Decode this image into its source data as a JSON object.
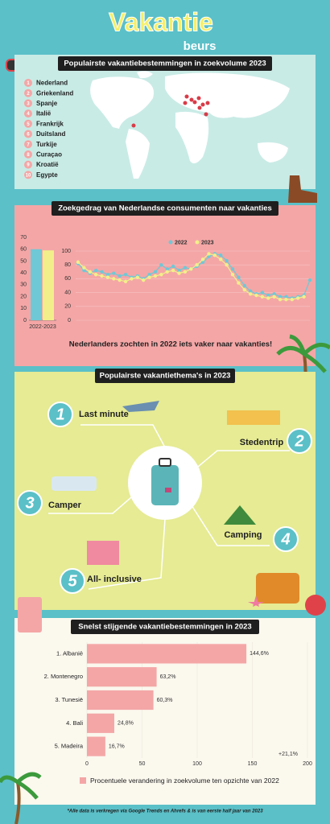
{
  "header": {
    "title": "Vakantie",
    "subtitle": "beurs"
  },
  "section_titles": [
    "Populairste vakantiebestemmingen in zoekvolume 2023",
    "Zoekgedrag van Nederlandse consumenten naar vakanties",
    "Populairste vakantiethema's in 2023",
    "Snelst stijgende vakantiebestemmingen in 2023"
  ],
  "destinations": [
    {
      "rank": "1",
      "name": "Nederland"
    },
    {
      "rank": "2",
      "name": "Griekenland"
    },
    {
      "rank": "3",
      "name": "Spanje"
    },
    {
      "rank": "4",
      "name": "Italië"
    },
    {
      "rank": "5",
      "name": "Frankrijk"
    },
    {
      "rank": "6",
      "name": "Duitsland"
    },
    {
      "rank": "7",
      "name": "Turkije"
    },
    {
      "rank": "8",
      "name": "Curaçao"
    },
    {
      "rank": "9",
      "name": "Kroatië"
    },
    {
      "rank": "10",
      "name": "Egypte"
    }
  ],
  "themes": [
    {
      "number": "1",
      "label": "Last minute"
    },
    {
      "number": "2",
      "label": "Stedentrip"
    },
    {
      "number": "3",
      "label": "Camper"
    },
    {
      "number": "4",
      "label": "Camping"
    },
    {
      "number": "5",
      "label": "All- inclusive"
    }
  ],
  "footer": "*Alle data is verkregen via Google Trends en Ahrefs & is van eerste half jaar van 2023",
  "chart_data": [
    {
      "type": "bar",
      "categories": [
        "2022-2023"
      ],
      "series": [
        {
          "color": "#6fc8d6",
          "values": [
            60
          ]
        },
        {
          "color": "#f2ef8a",
          "values": [
            59
          ]
        }
      ],
      "ylim": [
        0,
        70
      ],
      "yticks": [
        0,
        10,
        20,
        30,
        40,
        50,
        60,
        70
      ]
    },
    {
      "type": "line",
      "categories": [
        null,
        null,
        null,
        null,
        null,
        null,
        null,
        null,
        null,
        null,
        null,
        null,
        null,
        null,
        null,
        null,
        null,
        null,
        null,
        null,
        null,
        null,
        null,
        null,
        null,
        null,
        null,
        null,
        null,
        null,
        null,
        null,
        null,
        null,
        null,
        null,
        null,
        null,
        null,
        null
      ],
      "series": [
        {
          "name": "2022",
          "color": "#6fc8d6",
          "values": [
            82,
            72,
            68,
            72,
            70,
            66,
            68,
            64,
            66,
            62,
            64,
            60,
            66,
            70,
            80,
            74,
            78,
            72,
            76,
            74,
            78,
            84,
            92,
            96,
            94,
            86,
            74,
            62,
            50,
            42,
            38,
            40,
            36,
            38,
            34,
            34,
            32,
            34,
            36,
            58
          ]
        },
        {
          "name": "2023",
          "color": "#f2ef8a",
          "values": [
            84,
            76,
            70,
            66,
            64,
            62,
            60,
            58,
            56,
            60,
            62,
            58,
            62,
            64,
            66,
            70,
            72,
            68,
            70,
            74,
            80,
            88,
            96,
            94,
            88,
            80,
            66,
            54,
            44,
            38,
            36,
            34,
            32,
            34,
            30,
            30,
            30,
            32,
            34,
            null
          ]
        }
      ],
      "ylim": [
        0,
        100
      ],
      "yticks": [
        0,
        20,
        40,
        60,
        80,
        100
      ],
      "annotation": "Nederlanders zochten in 2022 iets vaker naar vakanties!"
    },
    {
      "type": "hbar",
      "categories": [
        "1. Albanië",
        "2. Montenegro",
        "3. Tunesië",
        "4. Bali",
        "5. Madeira"
      ],
      "series": [
        {
          "name": "Procentuele verandering in zoekvolume ten opzichte van 2022",
          "color": "#f4a6a6",
          "values": [
            144.6,
            63.2,
            60.3,
            24.8,
            16.7
          ],
          "value_labels": [
            "144,6%",
            "63,2%",
            "60,3%",
            "24,8%",
            "16,7%"
          ]
        }
      ],
      "xlim": [
        0,
        200
      ],
      "xticks": [
        0,
        50,
        100,
        150,
        200
      ],
      "annotation": "+21,1%"
    }
  ]
}
